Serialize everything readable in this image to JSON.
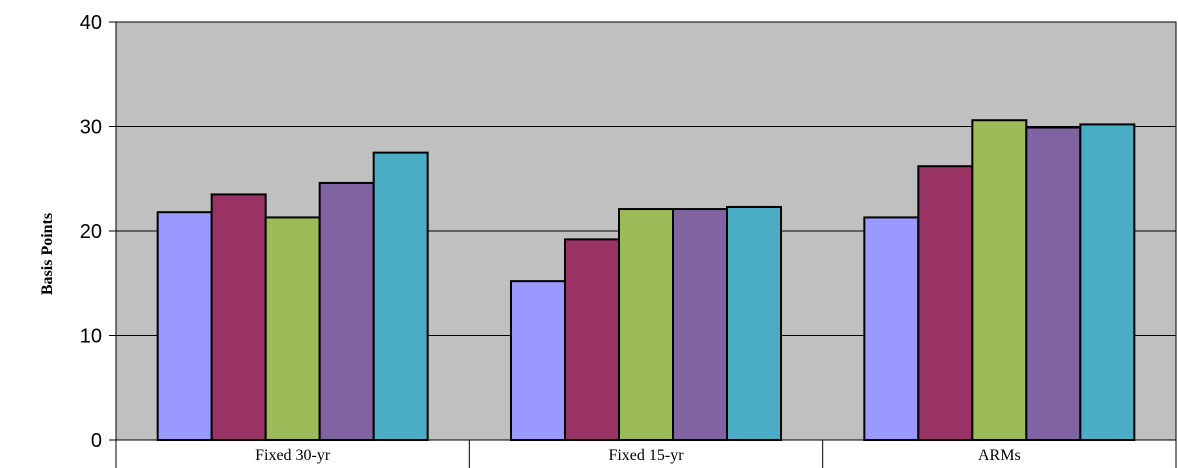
{
  "chart_data": {
    "type": "bar",
    "title": "",
    "xlabel": "",
    "ylabel": "Basis Points",
    "ylim": [
      0,
      40
    ],
    "yticks": [
      0,
      10,
      20,
      30,
      40
    ],
    "grid": true,
    "legend": "none",
    "plot_background": "#c0c0c0",
    "categories": [
      "Fixed 30-yr",
      "Fixed 15-yr",
      "ARMs"
    ],
    "series": [
      {
        "color": "#9999ff",
        "values": [
          21.8,
          15.2,
          21.3
        ]
      },
      {
        "color": "#993366",
        "values": [
          23.5,
          19.2,
          26.2
        ]
      },
      {
        "color": "#9bbb59",
        "values": [
          21.3,
          22.1,
          30.6
        ]
      },
      {
        "color": "#8064a2",
        "values": [
          24.6,
          22.1,
          29.9
        ]
      },
      {
        "color": "#4bacc6",
        "values": [
          27.5,
          22.3,
          30.2
        ]
      }
    ]
  }
}
